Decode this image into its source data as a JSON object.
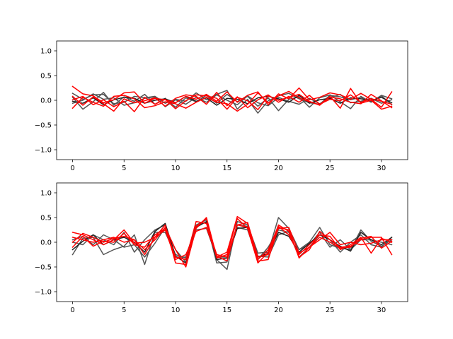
{
  "chart_data": [
    {
      "type": "line",
      "xlim": [
        -1.55,
        32.55
      ],
      "ylim": [
        -1.2,
        1.2
      ],
      "x_ticks": [
        0,
        5,
        10,
        15,
        20,
        25,
        30
      ],
      "x_tick_labels": [
        "0",
        "5",
        "10",
        "15",
        "20",
        "25",
        "30"
      ],
      "y_ticks": [
        -1.0,
        -0.5,
        0.0,
        0.5,
        1.0
      ],
      "y_tick_labels": [
        "−1.0",
        "−0.5",
        "0.0",
        "0.5",
        "1.0"
      ],
      "grid": false,
      "x": [
        0,
        1,
        2,
        3,
        4,
        5,
        6,
        7,
        8,
        9,
        10,
        11,
        12,
        13,
        14,
        15,
        16,
        17,
        18,
        19,
        20,
        21,
        22,
        23,
        24,
        25,
        26,
        27,
        28,
        29,
        30,
        31
      ],
      "series": [
        {
          "color": "#555555",
          "values": [
            0.14,
            0.02,
            0.11,
            0.12,
            -0.07,
            -0.04,
            0.08,
            0.05,
            0.08,
            -0.06,
            0.02,
            -0.02,
            0.15,
            0.01,
            0.12,
            0.2,
            -0.18,
            0.02,
            -0.26,
            -0.01,
            0.09,
            0.14,
            0.03,
            -0.05,
            -0.08,
            0.1,
            0.07,
            0.01,
            0.06,
            -0.03,
            0.1,
            0.03
          ]
        },
        {
          "color": "#555555",
          "values": [
            0.06,
            -0.18,
            -0.03,
            0.16,
            -0.1,
            0.07,
            -0.02,
            0.12,
            -0.08,
            0.04,
            -0.14,
            0.05,
            -0.03,
            0.1,
            -0.06,
            0.12,
            -0.03,
            0.08,
            -0.12,
            0.05,
            -0.21,
            0.02,
            0.07,
            -0.14,
            0.05,
            0.11,
            -0.03,
            -0.17,
            0.08,
            -0.04,
            0.09,
            -0.09
          ]
        },
        {
          "color": "#555555",
          "values": [
            -0.06,
            0.0,
            0.13,
            0.02,
            0.05,
            -0.1,
            -0.05,
            0.04,
            0.07,
            -0.13,
            0.01,
            -0.08,
            0.06,
            -0.04,
            0.11,
            0.0,
            -0.09,
            0.09,
            -0.05,
            -0.11,
            0.06,
            -0.02,
            -0.08,
            0.04,
            -0.07,
            0.05,
            0.12,
            -0.05,
            -0.02,
            0.04,
            -0.06,
            0.01
          ]
        },
        {
          "color": "#222222",
          "values": [
            -0.02,
            -0.06,
            0.05,
            -0.09,
            0.01,
            0.06,
            0.04,
            -0.06,
            0.0,
            0.03,
            -0.05,
            0.08,
            -0.02,
            0.05,
            -0.1,
            0.04,
            0.02,
            -0.07,
            0.05,
            0.08,
            0.03,
            -0.04,
            0.1,
            -0.06,
            0.01,
            0.04,
            -0.06,
            0.05,
            0.03,
            -0.01,
            0.06,
            -0.05
          ]
        },
        {
          "color": "#ff0000",
          "values": [
            0.28,
            0.13,
            0.09,
            -0.05,
            0.01,
            0.15,
            0.17,
            -0.06,
            0.04,
            0.01,
            -0.05,
            0.08,
            0.02,
            0.12,
            -0.02,
            0.17,
            -0.04,
            0.1,
            0.17,
            -0.09,
            0.13,
            0.03,
            0.25,
            0.01,
            0.06,
            0.15,
            0.11,
            0.02,
            0.14,
            0.02,
            -0.14,
            0.17
          ]
        },
        {
          "color": "#ff0000",
          "values": [
            -0.16,
            0.06,
            -0.04,
            -0.12,
            0.08,
            0.1,
            0.03,
            -0.15,
            -0.11,
            -0.03,
            -0.07,
            -0.16,
            -0.04,
            0.06,
            -0.04,
            -0.07,
            -0.22,
            -0.08,
            0.15,
            -0.05,
            0.09,
            0.18,
            0.05,
            -0.03,
            -0.09,
            0.08,
            -0.16,
            0.24,
            -0.06,
            0.0,
            -0.18,
            -0.12
          ]
        },
        {
          "color": "#ff0000",
          "values": [
            0.08,
            -0.1,
            0.07,
            -0.07,
            -0.22,
            0.03,
            -0.05,
            -0.01,
            0.05,
            -0.12,
            0.04,
            0.11,
            0.08,
            -0.08,
            0.16,
            -0.11,
            0.07,
            -0.15,
            0.01,
            0.11,
            -0.04,
            0.08,
            -0.04,
            0.1,
            -0.08,
            0.02,
            -0.01,
            0.11,
            -0.04,
            0.03,
            -0.02,
            -0.08
          ]
        },
        {
          "color": "#ff0000",
          "values": [
            0.01,
            0.08,
            -0.09,
            0.01,
            -0.13,
            -0.02,
            -0.23,
            0.06,
            -0.08,
            0.02,
            -0.17,
            -0.01,
            0.11,
            0.09,
            0.04,
            -0.18,
            0.06,
            -0.01,
            -0.19,
            0.09,
            0.0,
            0.06,
            0.12,
            -0.02,
            -0.1,
            0.07,
            0.03,
            -0.04,
            -0.07,
            0.12,
            -0.01,
            -0.15
          ]
        }
      ]
    },
    {
      "type": "line",
      "xlim": [
        -1.55,
        32.55
      ],
      "ylim": [
        -1.2,
        1.2
      ],
      "x_ticks": [
        0,
        5,
        10,
        15,
        20,
        25,
        30
      ],
      "x_tick_labels": [
        "0",
        "5",
        "10",
        "15",
        "20",
        "25",
        "30"
      ],
      "y_ticks": [
        -1.0,
        -0.5,
        0.0,
        0.5,
        1.0
      ],
      "y_tick_labels": [
        "−1.0",
        "−0.5",
        "0.0",
        "0.5",
        "1.0"
      ],
      "grid": false,
      "x": [
        0,
        1,
        2,
        3,
        4,
        5,
        6,
        7,
        8,
        9,
        10,
        11,
        12,
        13,
        14,
        15,
        16,
        17,
        18,
        19,
        20,
        21,
        22,
        23,
        24,
        25,
        26,
        27,
        28,
        29,
        30,
        31
      ],
      "series": [
        {
          "color": "#555555",
          "values": [
            -0.25,
            0.08,
            0.1,
            -0.25,
            -0.15,
            -0.08,
            0.15,
            -0.45,
            0.2,
            0.2,
            -0.25,
            -0.32,
            0.35,
            0.45,
            -0.35,
            -0.55,
            0.42,
            0.35,
            -0.22,
            -0.2,
            0.5,
            0.28,
            -0.15,
            0.0,
            0.3,
            -0.05,
            -0.12,
            -0.15,
            0.25,
            0.02,
            -0.08,
            0.05
          ]
        },
        {
          "color": "#555555",
          "values": [
            0.05,
            0.12,
            -0.05,
            0.15,
            0.05,
            -0.1,
            -0.05,
            -0.3,
            -0.02,
            0.3,
            -0.15,
            -0.4,
            0.25,
            0.28,
            -0.3,
            -0.3,
            0.3,
            0.25,
            -0.35,
            -0.1,
            0.25,
            0.2,
            -0.3,
            -0.1,
            0.15,
            0.05,
            -0.2,
            0.0,
            0.15,
            -0.05,
            -0.1,
            0.1
          ]
        },
        {
          "color": "#555555",
          "values": [
            0.0,
            -0.05,
            0.15,
            0.05,
            -0.05,
            0.2,
            -0.2,
            0.05,
            0.25,
            0.35,
            -0.3,
            -0.3,
            0.35,
            0.4,
            -0.42,
            -0.4,
            0.35,
            0.32,
            -0.28,
            -0.3,
            0.15,
            0.22,
            -0.15,
            -0.05,
            0.2,
            -0.1,
            0.05,
            -0.15,
            0.05,
            0.05,
            0.0,
            -0.05
          ]
        },
        {
          "color": "#222222",
          "values": [
            -0.15,
            0.02,
            0.15,
            -0.05,
            0.05,
            0.1,
            0.0,
            -0.2,
            0.22,
            0.38,
            -0.28,
            -0.42,
            0.3,
            0.42,
            -0.35,
            -0.32,
            0.28,
            0.3,
            -0.3,
            -0.22,
            0.2,
            0.12,
            -0.2,
            -0.02,
            0.15,
            0.05,
            -0.08,
            -0.18,
            0.2,
            0.05,
            -0.05,
            0.1
          ]
        },
        {
          "color": "#ff0000",
          "values": [
            0.2,
            0.15,
            0.05,
            -0.05,
            0.05,
            0.25,
            -0.02,
            0.0,
            0.1,
            0.35,
            -0.42,
            -0.45,
            0.32,
            0.48,
            -0.32,
            -0.25,
            0.48,
            0.28,
            -0.42,
            -0.2,
            0.35,
            0.22,
            -0.3,
            -0.15,
            0.22,
            0.05,
            -0.1,
            -0.08,
            0.05,
            0.1,
            0.1,
            -0.25
          ]
        },
        {
          "color": "#ff0000",
          "values": [
            0.0,
            0.18,
            0.1,
            0.0,
            0.08,
            0.12,
            0.05,
            -0.15,
            0.05,
            0.3,
            -0.15,
            -0.5,
            0.28,
            0.5,
            -0.3,
            -0.2,
            0.52,
            0.38,
            -0.38,
            -0.35,
            0.3,
            0.25,
            -0.32,
            -0.1,
            0.05,
            0.2,
            -0.05,
            0.0,
            -0.05,
            -0.02,
            0.05,
            0.05
          ]
        },
        {
          "color": "#ff0000",
          "values": [
            0.1,
            0.05,
            0.0,
            0.05,
            0.1,
            0.0,
            0.05,
            -0.25,
            0.1,
            0.25,
            -0.35,
            -0.25,
            0.22,
            0.3,
            -0.28,
            -0.38,
            0.35,
            0.3,
            -0.35,
            -0.15,
            0.32,
            0.15,
            -0.25,
            -0.05,
            0.15,
            0.12,
            -0.15,
            -0.05,
            0.1,
            -0.22,
            0.08,
            0.0
          ]
        },
        {
          "color": "#ff0000",
          "values": [
            -0.1,
            0.12,
            -0.08,
            0.02,
            0.0,
            0.18,
            -0.05,
            -0.1,
            0.15,
            0.28,
            -0.3,
            -0.35,
            0.42,
            0.38,
            -0.25,
            -0.3,
            0.35,
            0.4,
            -0.3,
            -0.25,
            0.28,
            0.3,
            -0.22,
            -0.1,
            0.1,
            0.0,
            -0.12,
            -0.1,
            0.08,
            0.12,
            -0.12,
            0.02
          ]
        }
      ]
    }
  ]
}
